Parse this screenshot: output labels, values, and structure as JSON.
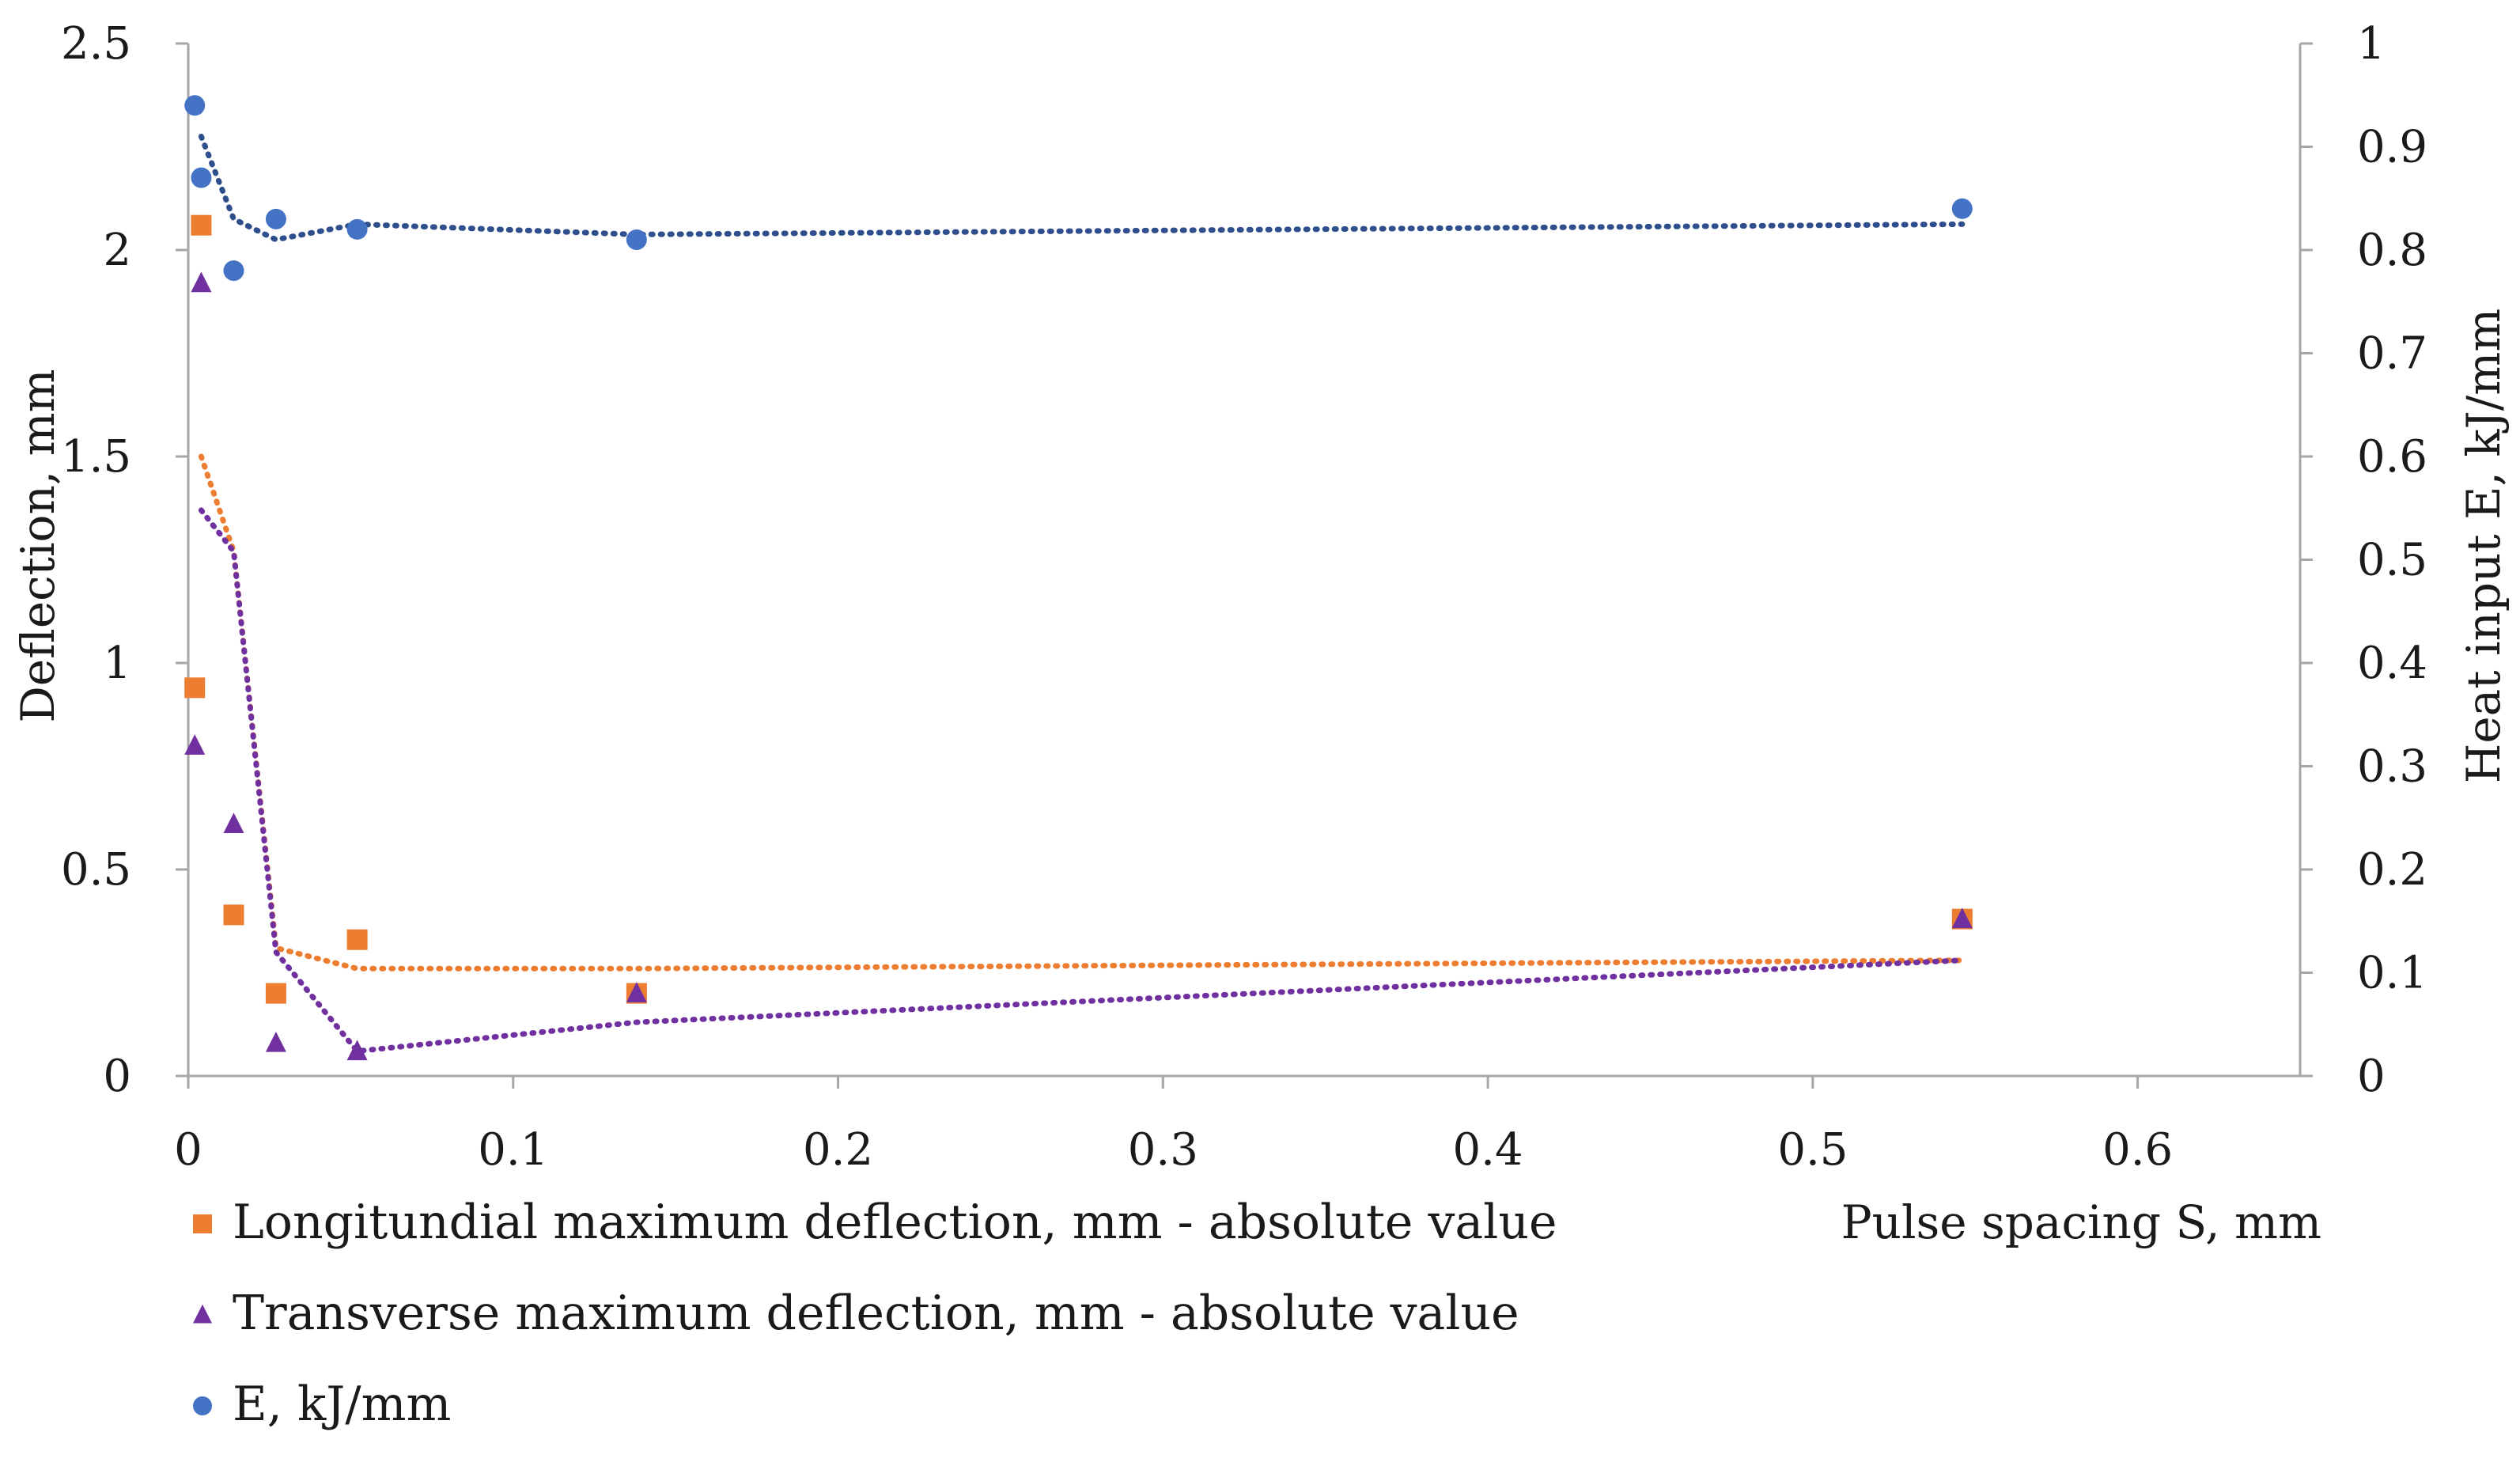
{
  "chart_data": {
    "type": "scatter",
    "xlabel": "Pulse spacing S, mm",
    "ylabel_left": "Deflection, mm",
    "ylabel_right": "Heat input E, kJ/mm",
    "xlim": [
      0,
      0.65
    ],
    "ylim_left": [
      0,
      2.5
    ],
    "ylim_right": [
      0,
      1
    ],
    "x_ticks": [
      0,
      0.1,
      0.2,
      0.3,
      0.4,
      0.5,
      0.6
    ],
    "y_left_ticks": [
      0,
      0.5,
      1,
      1.5,
      2,
      2.5
    ],
    "y_right_ticks": [
      0,
      0.1,
      0.2,
      0.3,
      0.4,
      0.5,
      0.6,
      0.7,
      0.8,
      0.9,
      1
    ],
    "x_tick_labels": [
      "0",
      "0.1",
      "0.2",
      "0.3",
      "0.4",
      "0.5",
      "0.6"
    ],
    "y_left_tick_labels": [
      "0",
      "0.5",
      "1",
      "1.5",
      "2",
      "2.5"
    ],
    "y_right_tick_labels": [
      "0",
      "0.1",
      "0.2",
      "0.3",
      "0.4",
      "0.5",
      "0.6",
      "0.7",
      "0.8",
      "0.9",
      "1"
    ],
    "grid": false,
    "legend_position": "bottom-left",
    "series": [
      {
        "name": "Longitundial maximum deflection, mm - absolute value",
        "axis": "left",
        "marker": "square",
        "color": "#ED7D31",
        "x": [
          0.002,
          0.004,
          0.014,
          0.027,
          0.052,
          0.138,
          0.546
        ],
        "y": [
          0.94,
          2.06,
          0.39,
          0.2,
          0.33,
          0.2,
          0.38
        ],
        "trend": {
          "x": [
            0.004,
            0.014,
            0.027,
            0.052,
            0.138,
            0.546
          ],
          "y": [
            1.5,
            1.27,
            0.31,
            0.26,
            0.26,
            0.28
          ]
        }
      },
      {
        "name": "Transverse maximum deflection, mm - absolute value",
        "axis": "left",
        "marker": "triangle",
        "color": "#7030A0",
        "x": [
          0.002,
          0.004,
          0.014,
          0.027,
          0.052,
          0.138,
          0.546
        ],
        "y": [
          0.8,
          1.92,
          0.61,
          0.08,
          0.06,
          0.2,
          0.38
        ],
        "trend": {
          "x": [
            0.004,
            0.014,
            0.027,
            0.052,
            0.138,
            0.546
          ],
          "y": [
            1.37,
            1.27,
            0.3,
            0.06,
            0.13,
            0.28
          ]
        }
      },
      {
        "name": "E, kJ/mm",
        "axis": "right",
        "marker": "circle",
        "color": "#4472C4",
        "x": [
          0.002,
          0.004,
          0.014,
          0.027,
          0.052,
          0.138,
          0.546
        ],
        "y": [
          0.94,
          0.87,
          0.78,
          0.83,
          0.82,
          0.81,
          0.84
        ],
        "trend": {
          "x": [
            0.004,
            0.014,
            0.027,
            0.052,
            0.138,
            0.546
          ],
          "y": [
            0.91,
            0.83,
            0.81,
            0.825,
            0.815,
            0.825
          ]
        },
        "trend_color": "#2F4E8C"
      }
    ]
  }
}
